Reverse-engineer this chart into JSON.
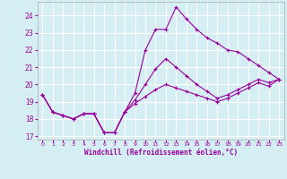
{
  "xlabel": "Windchill (Refroidissement éolien,°C)",
  "background_color": "#d4eef4",
  "grid_color": "#ffffff",
  "line_color": "#990099",
  "xlim": [
    -0.5,
    23.5
  ],
  "ylim": [
    16.8,
    24.8
  ],
  "yticks": [
    17,
    18,
    19,
    20,
    21,
    22,
    23,
    24
  ],
  "xticks": [
    0,
    1,
    2,
    3,
    4,
    5,
    6,
    7,
    8,
    9,
    10,
    11,
    12,
    13,
    14,
    15,
    16,
    17,
    18,
    19,
    20,
    21,
    22,
    23
  ],
  "series": [
    {
      "x": [
        0,
        1,
        2,
        3,
        4,
        5,
        6,
        7,
        8,
        9,
        10,
        11,
        12,
        13,
        14,
        15,
        16,
        17,
        18,
        19,
        20,
        21,
        22,
        23
      ],
      "y": [
        19.4,
        18.4,
        18.2,
        18.0,
        18.3,
        18.3,
        17.2,
        17.2,
        18.4,
        19.5,
        22.0,
        23.2,
        23.2,
        24.5,
        23.8,
        23.2,
        22.7,
        22.4,
        22.0,
        21.9,
        21.5,
        21.1,
        20.7,
        20.3
      ]
    },
    {
      "x": [
        0,
        1,
        2,
        3,
        4,
        5,
        6,
        7,
        8,
        9,
        10,
        11,
        12,
        13,
        14,
        15,
        16,
        17,
        18,
        19,
        20,
        21,
        22,
        23
      ],
      "y": [
        19.4,
        18.4,
        18.2,
        18.0,
        18.3,
        18.3,
        17.2,
        17.2,
        18.4,
        19.1,
        20.0,
        20.9,
        21.5,
        21.0,
        20.5,
        20.0,
        19.6,
        19.2,
        19.4,
        19.7,
        20.0,
        20.3,
        20.1,
        20.3
      ]
    },
    {
      "x": [
        0,
        1,
        2,
        3,
        4,
        5,
        6,
        7,
        8,
        9,
        10,
        11,
        12,
        13,
        14,
        15,
        16,
        17,
        18,
        19,
        20,
        21,
        22,
        23
      ],
      "y": [
        19.4,
        18.4,
        18.2,
        18.0,
        18.3,
        18.3,
        17.2,
        17.2,
        18.4,
        18.9,
        19.3,
        19.7,
        20.0,
        19.8,
        19.6,
        19.4,
        19.2,
        19.0,
        19.2,
        19.5,
        19.8,
        20.1,
        19.9,
        20.3
      ]
    }
  ]
}
